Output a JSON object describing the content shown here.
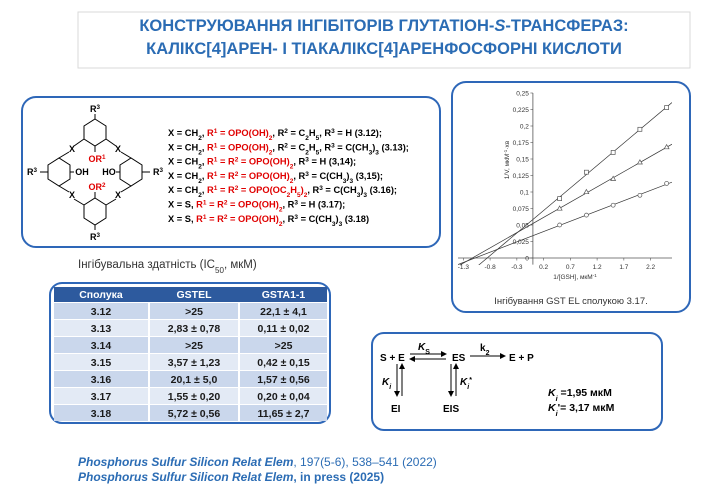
{
  "title": {
    "line1": [
      [
        "КОНСТРУЮВАННЯ ІНГІБІТОРІВ ГЛУТАТІОН-",
        "b"
      ],
      [
        "S",
        "bi"
      ],
      [
        "-ТРАНСФЕРАЗ:",
        "b"
      ]
    ],
    "line2": [
      [
        "КАЛІКС[4]АРЕН- І ТІАКАЛІКС[4]АРЕНФОСФОРНІ КИСЛОТИ",
        "b"
      ]
    ]
  },
  "structure": {
    "r": "R",
    "x": "X",
    "o": "O",
    "oh": "OH",
    "ho": "HO",
    "n1": "1",
    "n2": "2",
    "n3": "3"
  },
  "compounds": [
    [
      [
        "X = CH",
        ""
      ],
      [
        "2",
        "s"
      ],
      [
        ", ",
        ""
      ],
      [
        "R",
        "r"
      ],
      [
        "1",
        "rp"
      ],
      [
        " = OPO(OH)",
        "r"
      ],
      [
        "2",
        "rs"
      ],
      [
        ", R",
        ""
      ],
      [
        "2",
        "p"
      ],
      [
        " = C",
        ""
      ],
      [
        "2",
        "s"
      ],
      [
        "H",
        ""
      ],
      [
        "5",
        "s"
      ],
      [
        ", R",
        ""
      ],
      [
        "3",
        "p"
      ],
      [
        " = H (3.12);",
        ""
      ]
    ],
    [
      [
        "X = CH",
        ""
      ],
      [
        "2",
        "s"
      ],
      [
        ", ",
        ""
      ],
      [
        "R",
        "r"
      ],
      [
        "1",
        "rp"
      ],
      [
        " = OPO(OH)",
        "r"
      ],
      [
        "2",
        "rs"
      ],
      [
        ", R",
        ""
      ],
      [
        "2",
        "p"
      ],
      [
        " = C",
        ""
      ],
      [
        "2",
        "s"
      ],
      [
        "H",
        ""
      ],
      [
        "5",
        "s"
      ],
      [
        ", R",
        ""
      ],
      [
        "3",
        "p"
      ],
      [
        " = C(CH",
        ""
      ],
      [
        "3",
        "s"
      ],
      [
        ")",
        ""
      ],
      [
        "3",
        "s"
      ],
      [
        " (3.13);",
        ""
      ]
    ],
    [
      [
        "X = CH",
        ""
      ],
      [
        "2",
        "s"
      ],
      [
        ", ",
        ""
      ],
      [
        "R",
        "r"
      ],
      [
        "1",
        "rp"
      ],
      [
        " = R",
        "r"
      ],
      [
        "2",
        "rp"
      ],
      [
        " = OPO(OH)",
        "r"
      ],
      [
        "2",
        "rs"
      ],
      [
        ", R",
        ""
      ],
      [
        "3",
        "p"
      ],
      [
        " = H (3,14);",
        ""
      ]
    ],
    [
      [
        "X = CH",
        ""
      ],
      [
        "2",
        "s"
      ],
      [
        ", ",
        ""
      ],
      [
        "R",
        "r"
      ],
      [
        "1",
        "rp"
      ],
      [
        " = R",
        "r"
      ],
      [
        "2",
        "rp"
      ],
      [
        " = OPO(OH)",
        "r"
      ],
      [
        "2",
        "rs"
      ],
      [
        ", R",
        ""
      ],
      [
        "3",
        "p"
      ],
      [
        " = C(CH",
        ""
      ],
      [
        "3",
        "s"
      ],
      [
        ")",
        ""
      ],
      [
        "3",
        "s"
      ],
      [
        " (3,15);",
        ""
      ]
    ],
    [
      [
        "X = CH",
        ""
      ],
      [
        "2",
        "s"
      ],
      [
        ", ",
        ""
      ],
      [
        "R",
        "r"
      ],
      [
        "1",
        "rp"
      ],
      [
        " = R",
        "r"
      ],
      [
        "2",
        "rp"
      ],
      [
        " = OPO(OC",
        "r"
      ],
      [
        "2",
        "rs"
      ],
      [
        "H",
        "r"
      ],
      [
        "5",
        "rs"
      ],
      [
        ")",
        "r"
      ],
      [
        "2",
        "rs"
      ],
      [
        ", R",
        ""
      ],
      [
        "3",
        "p"
      ],
      [
        " = C(CH",
        ""
      ],
      [
        "3",
        "s"
      ],
      [
        ")",
        ""
      ],
      [
        "3",
        "s"
      ],
      [
        " (3.16);",
        ""
      ]
    ],
    [
      [
        "X = S, ",
        ""
      ],
      [
        "R",
        "r"
      ],
      [
        "1",
        "rp"
      ],
      [
        " = R",
        "r"
      ],
      [
        "2",
        "rp"
      ],
      [
        " = OPO(OH)",
        "r"
      ],
      [
        "2",
        "rs"
      ],
      [
        ", R",
        ""
      ],
      [
        "3",
        "p"
      ],
      [
        " = H (3.17);",
        ""
      ]
    ],
    [
      [
        "X = S, ",
        ""
      ],
      [
        "R",
        "r"
      ],
      [
        "1",
        "rp"
      ],
      [
        " = R",
        "r"
      ],
      [
        "2",
        "rp"
      ],
      [
        " = OPO(OH)",
        "r"
      ],
      [
        "2",
        "rs"
      ],
      [
        ", R",
        ""
      ],
      [
        "3",
        "p"
      ],
      [
        " = C(CH",
        ""
      ],
      [
        "3",
        "s"
      ],
      [
        ")",
        ""
      ],
      [
        "3",
        "s"
      ],
      [
        " (3.18)",
        ""
      ]
    ]
  ],
  "ic50_caption": [
    [
      "Інгібувальна здатність (IC",
      ""
    ],
    [
      "50",
      "s"
    ],
    [
      ", мкМ)",
      ""
    ]
  ],
  "table": {
    "header": [
      "Сполука",
      "GSTEL",
      "GSTA1-1"
    ],
    "rows": [
      [
        "3.12",
        ">25",
        "22,1 ± 4,1"
      ],
      [
        "3.13",
        "2,83 ± 0,78",
        "0,11 ± 0,02"
      ],
      [
        "3.14",
        ">25",
        ">25"
      ],
      [
        "3.15",
        "3,57 ± 1,23",
        "0,42 ± 0,15"
      ],
      [
        "3.16",
        "20,1 ± 5,0",
        "1,57 ± 0,56"
      ],
      [
        "3.17",
        "1,55 ± 0,20",
        "0,20 ± 0,04"
      ],
      [
        "3.18",
        "5,72 ± 0,56",
        "11,65 ± 2,7"
      ]
    ]
  },
  "chart_data": {
    "type": "scatter",
    "x_label": [
      [
        "1/[GSH], мкМ",
        ""
      ],
      [
        "-1",
        "p"
      ]
    ],
    "y_label": [
      [
        "1/V, мкМ",
        ""
      ],
      [
        "-1",
        "p"
      ],
      [
        "·хв",
        ""
      ]
    ],
    "caption": "Інгібування GST EL сполукою 3.17.",
    "x": [
      0.5,
      1.0,
      1.5,
      2.0,
      2.5
    ],
    "series": [
      {
        "marker": "square",
        "color": "#555555",
        "values": [
          0.09,
          0.13,
          0.16,
          0.195,
          0.228
        ]
      },
      {
        "marker": "triangle",
        "color": "#555555",
        "values": [
          0.075,
          0.1,
          0.12,
          0.145,
          0.168
        ]
      },
      {
        "marker": "circle",
        "color": "#555555",
        "values": [
          0.05,
          0.065,
          0.08,
          0.095,
          0.113
        ]
      }
    ],
    "trendline": true,
    "xlim": [
      -1.4,
      2.6
    ],
    "ylim": [
      -0.01,
      0.25
    ],
    "xticks": [
      -1.3,
      -0.8,
      -0.3,
      0.2,
      0.7,
      1.2,
      1.7,
      2.2
    ],
    "yticks": [
      0,
      {
        "value": 0.025,
        "label": "0,025"
      },
      {
        "value": 0.05,
        "label": "0,05"
      },
      {
        "value": 0.075,
        "label": "0,075"
      },
      {
        "value": 0.1,
        "label": "0,1"
      },
      {
        "value": 0.125,
        "label": "0,125"
      },
      {
        "value": 0.15,
        "label": "0,15"
      },
      {
        "value": 0.175,
        "label": "0,175"
      },
      {
        "value": 0.2,
        "label": "0,2"
      },
      {
        "value": 0.225,
        "label": "0,225"
      },
      {
        "value": 0.25,
        "label": "0,25"
      }
    ]
  },
  "scheme": {
    "se": "S + E",
    "es": "ES",
    "ep": "E + P",
    "ei": "EI",
    "eis": "EIS",
    "ks": [
      [
        "K",
        "bi"
      ],
      [
        "S",
        "bs"
      ]
    ],
    "k2": [
      [
        "k",
        "b"
      ],
      [
        "2",
        "bs"
      ]
    ],
    "ki": [
      [
        "K",
        "bi"
      ],
      [
        "i",
        "bis"
      ]
    ],
    "ki2": [
      [
        "K",
        "bi"
      ],
      [
        "i",
        "bis"
      ],
      [
        "*",
        "bp"
      ]
    ],
    "ki_val": [
      [
        "K",
        "bi"
      ],
      [
        "i",
        "bis"
      ],
      [
        " =1,95 мкМ",
        "b"
      ]
    ],
    "ki2_val": [
      [
        "K",
        "bi"
      ],
      [
        "i",
        "bis"
      ],
      [
        "'",
        "b"
      ],
      [
        "= 3,17 мкМ",
        "b"
      ]
    ]
  },
  "citations": [
    [
      [
        "Phosphorus Sulfur Silicon Relat Elem",
        "bi"
      ],
      [
        ", 197(5-6), 538–541 (2022)",
        ""
      ]
    ],
    [
      [
        "Phosphorus Sulfur Silicon Relat Elem",
        "bi"
      ],
      [
        ", in press (2025)",
        "b"
      ]
    ]
  ]
}
